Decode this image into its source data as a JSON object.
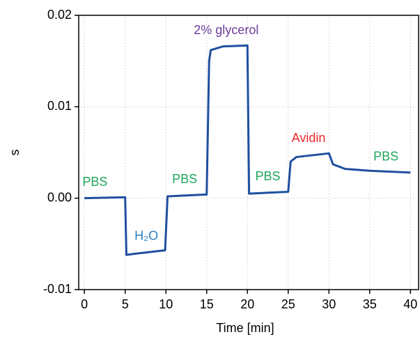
{
  "chart_data": {
    "type": "line",
    "xlabel": "Time [min]",
    "ylabel": "s",
    "xlim": [
      -0.7,
      41
    ],
    "ylim": [
      -0.01,
      0.02
    ],
    "xticks": [
      0,
      5,
      10,
      15,
      20,
      25,
      30,
      35,
      40
    ],
    "yticks": [
      {
        "value": -0.01,
        "label": "-0.01"
      },
      {
        "value": 0,
        "label": "0.00"
      },
      0.01,
      0.02
    ],
    "grid": true,
    "series": [
      {
        "color": "#1f4fa0",
        "x": [
          0,
          5,
          5.15,
          6,
          9.9,
          10.2,
          15,
          15.3,
          15.5,
          17,
          20,
          20.2,
          25,
          25.3,
          26,
          30,
          30.5,
          32,
          35,
          40
        ],
        "values": [
          0,
          0.0001,
          -0.0062,
          -0.0061,
          -0.0057,
          0.0002,
          0.0004,
          0.015,
          0.0162,
          0.0166,
          0.0167,
          0.0005,
          0.0007,
          0.004,
          0.0045,
          0.0049,
          0.0037,
          0.0032,
          0.003,
          0.0028
        ]
      }
    ],
    "annotations": [
      {
        "text": "PBS",
        "x": 1.3,
        "y": 0.0017,
        "color": "#1ea75a"
      },
      {
        "text": "H₂O",
        "x": 7.6,
        "y": -0.0042,
        "color": "#2b7fc1"
      },
      {
        "text": "PBS",
        "x": 12.3,
        "y": 0.002,
        "color": "#1ea75a"
      },
      {
        "text": "2% glycerol",
        "x": 17.4,
        "y": 0.0183,
        "color": "#6a3d9a"
      },
      {
        "text": "PBS",
        "x": 22.5,
        "y": 0.0023,
        "color": "#1ea75a"
      },
      {
        "text": "Avidin",
        "x": 27.5,
        "y": 0.0065,
        "color": "#e8262a"
      },
      {
        "text": "PBS",
        "x": 37,
        "y": 0.0045,
        "color": "#1ea75a"
      }
    ]
  }
}
